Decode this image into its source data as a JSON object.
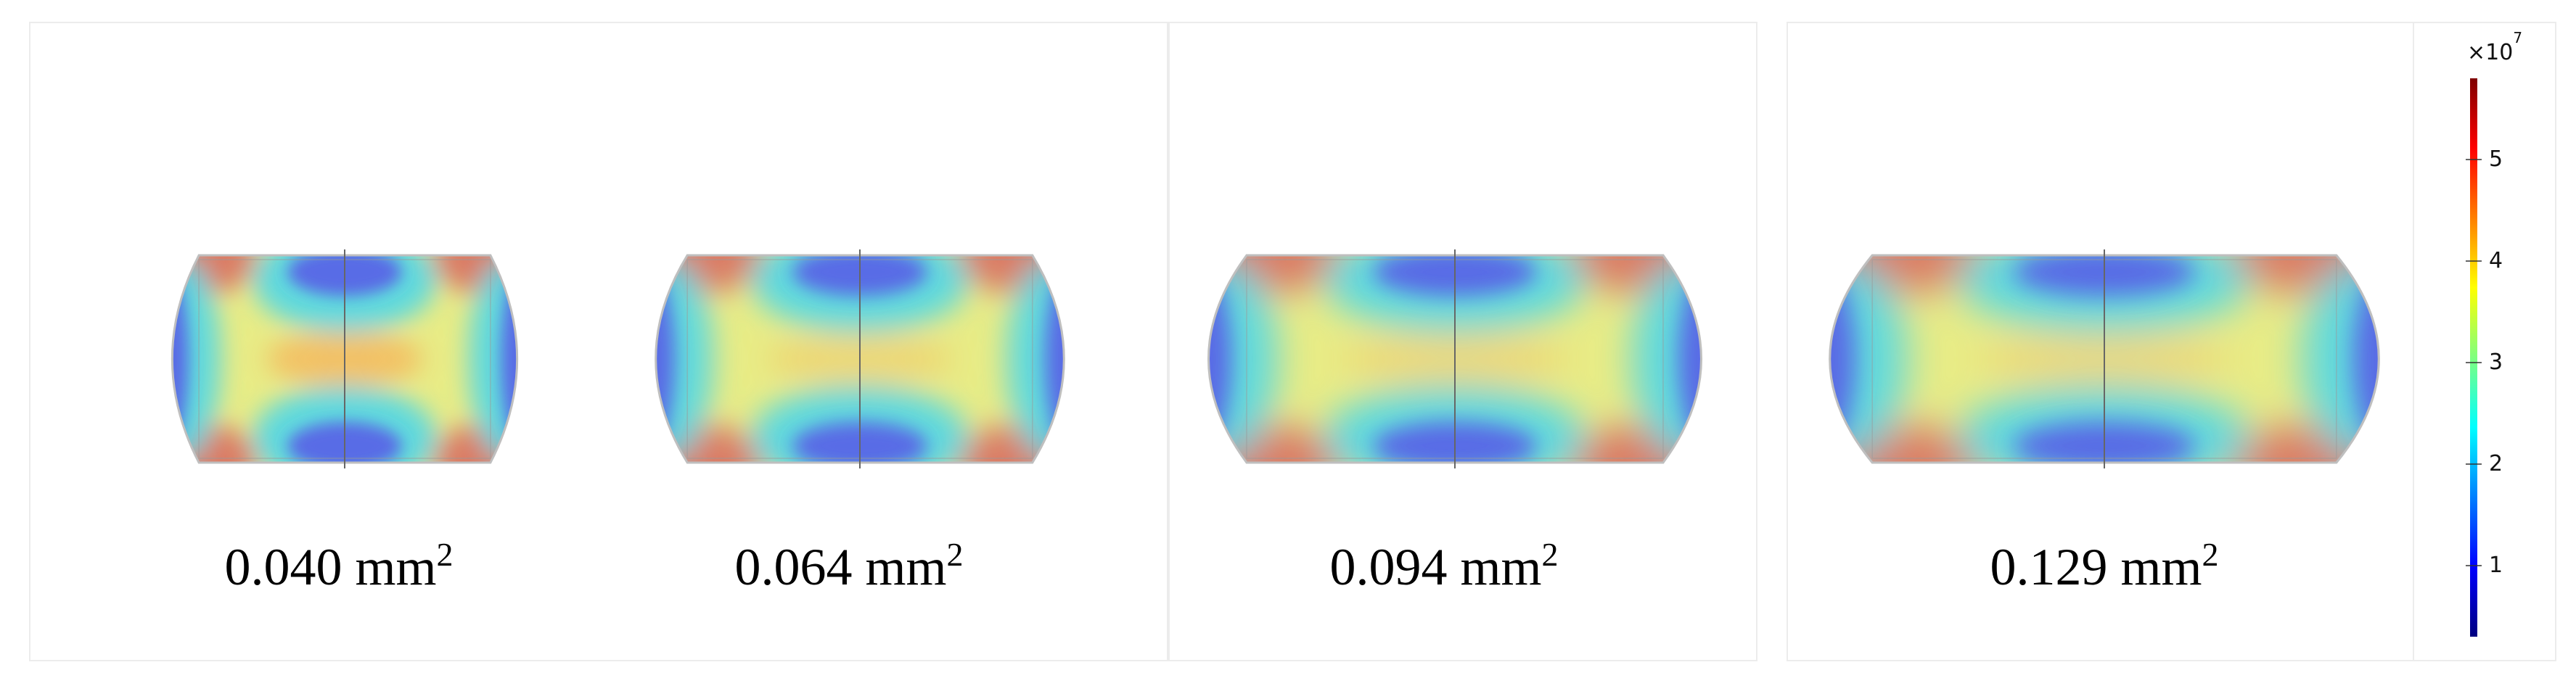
{
  "panels": [
    {
      "area_value": "0.040 mm",
      "area_exp": "2",
      "width_scale": 0.0,
      "wall": "clip-ends"
    },
    {
      "area_value": "0.064 mm",
      "area_exp": "2",
      "width_scale": 0.2,
      "wall": "clip-ends"
    },
    {
      "area_value": "0.094 mm",
      "area_exp": "2",
      "width_scale": 0.45,
      "wall": "clip-ends"
    },
    {
      "area_value": "0.129 mm",
      "area_exp": "2",
      "width_scale": 0.75,
      "wall": "clip-ends"
    }
  ],
  "colorbar": {
    "exponent_base": "×10",
    "exponent_power": "7",
    "min": 0.3,
    "max": 5.8,
    "ticks": [
      "1",
      "2",
      "3",
      "4",
      "5"
    ],
    "colormap": [
      "#00007f",
      "#0000ff",
      "#007fff",
      "#00ffff",
      "#7fff7f",
      "#ffff00",
      "#ff7f00",
      "#ff0000",
      "#7f0000"
    ]
  },
  "colors": {
    "blue_low": "#5a66e6",
    "cyan_mid": "#4fd6e8",
    "yellow": "#f4ee72",
    "orange": "#f6b45c",
    "red_high": "#d9705f",
    "outline": "#bfbfbf",
    "centerline": "#666666"
  }
}
